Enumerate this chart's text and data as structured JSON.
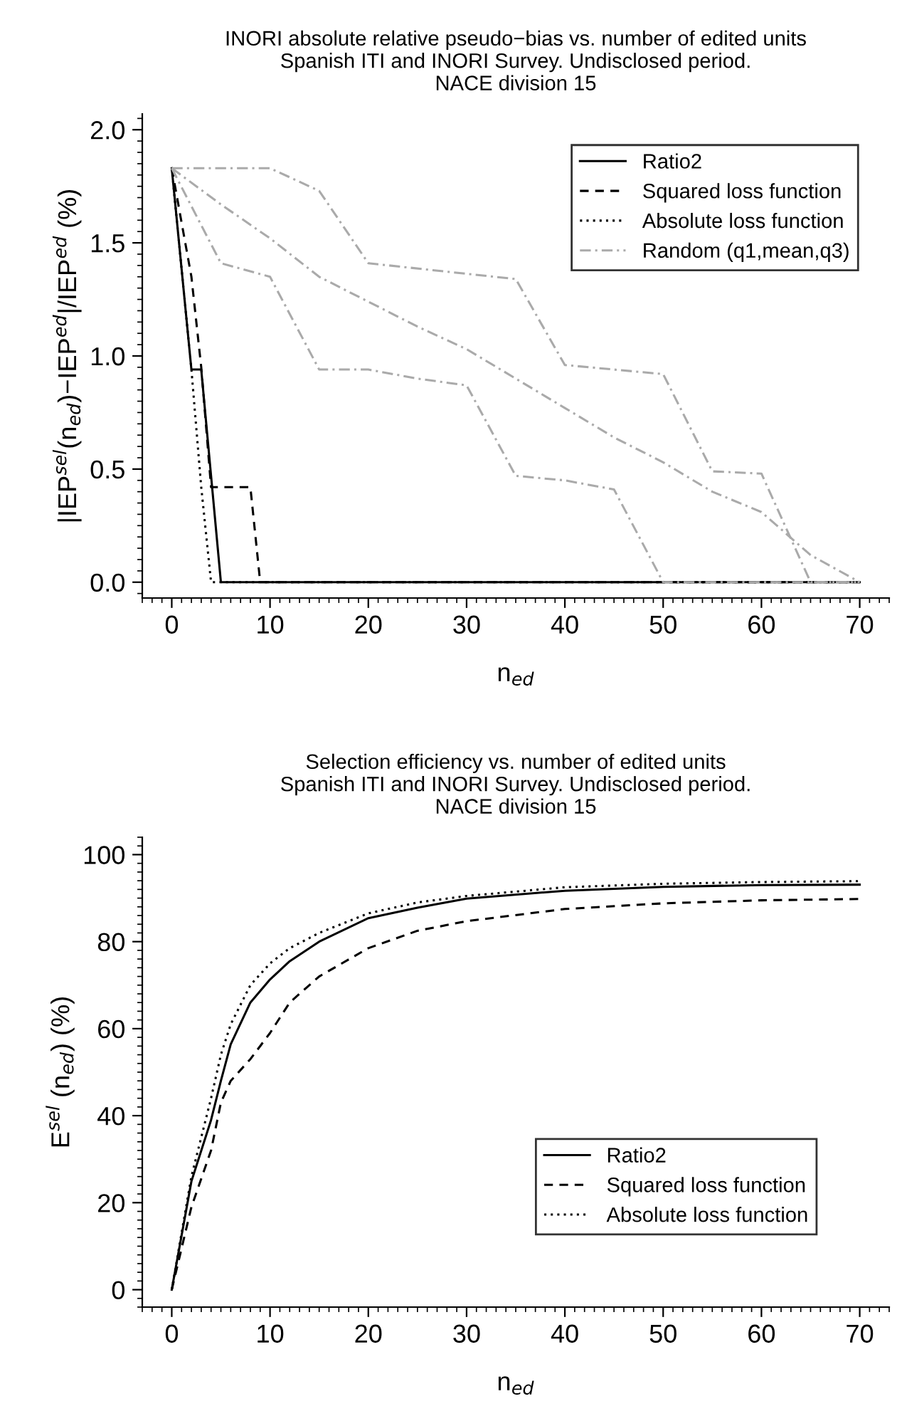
{
  "chart_data": [
    {
      "type": "line",
      "title": "INORI absolute relative pseudo−bias vs. number of edited units\nSpanish ITI and INORI Survey. Undisclosed period.\nNACE division 15",
      "xlabel": "n$_{ed}$",
      "ylabel": "|IEP$^{sel}$(n$_{ed}$)−IEP$^{ed}$|/IEP$^{ed}$ (%)",
      "xlim": [
        -3,
        73
      ],
      "ylim": [
        -0.07,
        2.07
      ],
      "xticks": [
        0,
        10,
        20,
        30,
        40,
        50,
        60,
        70
      ],
      "yticks": [
        {
          "value": 0,
          "label": "0.0"
        },
        {
          "value": 0.5,
          "label": "0.5"
        },
        {
          "value": 1,
          "label": "1.0"
        },
        {
          "value": 1.5,
          "label": "1.5"
        },
        {
          "value": 2,
          "label": "2.0"
        }
      ],
      "grid": false,
      "legend": "top right",
      "marker": "none",
      "series": [
        {
          "name": "Ratio2",
          "color": "#000000",
          "line_style": "solid",
          "x": [
            0,
            2,
            3,
            5,
            70
          ],
          "values": [
            1.83,
            0.94,
            0.94,
            0,
            0
          ]
        },
        {
          "name": "Squared loss function",
          "color": "#000000",
          "line_style": "dashed",
          "x": [
            0,
            2,
            3,
            4,
            8,
            9,
            70
          ],
          "values": [
            1.83,
            1.35,
            0.95,
            0.42,
            0.42,
            0,
            0
          ]
        },
        {
          "name": "Absolute loss function",
          "color": "#000000",
          "line_style": "dotted",
          "x": [
            0,
            2,
            3,
            4,
            70
          ],
          "values": [
            1.83,
            0.94,
            0.42,
            0,
            0
          ]
        },
        {
          "name": "Random (q1,mean,q3)",
          "color": "#aaaaaa",
          "line_style": "dashdot",
          "x": [
            0,
            10,
            15,
            20,
            35,
            40,
            50,
            55,
            60,
            65,
            70
          ],
          "values": [
            1.83,
            1.83,
            1.73,
            1.41,
            1.34,
            0.96,
            0.92,
            0.49,
            0.48,
            0,
            0
          ]
        },
        {
          "color": "#aaaaaa",
          "line_style": "dashdot",
          "x": [
            0,
            5,
            10,
            15,
            20,
            25,
            30,
            35,
            40,
            45,
            50,
            55,
            60,
            65,
            70
          ],
          "values": [
            1.83,
            1.67,
            1.52,
            1.35,
            1.24,
            1.13,
            1.03,
            0.9,
            0.77,
            0.64,
            0.53,
            0.4,
            0.31,
            0.12,
            0
          ]
        },
        {
          "color": "#aaaaaa",
          "line_style": "dashdot",
          "x": [
            0,
            5,
            10,
            15,
            20,
            25,
            30,
            35,
            40,
            45,
            50,
            70
          ],
          "values": [
            1.83,
            1.41,
            1.35,
            0.94,
            0.94,
            0.9,
            0.87,
            0.47,
            0.45,
            0.41,
            0,
            0
          ]
        }
      ]
    },
    {
      "type": "line",
      "title": "Selection efficiency vs. number of edited units\nSpanish ITI and INORI Survey. Undisclosed period.\nNACE division 15",
      "xlabel": "n$_{ed}$",
      "ylabel": "E$^{sel}$ (n$_{ed}$) (%)",
      "xlim": [
        -3,
        73
      ],
      "ylim": [
        -4,
        104
      ],
      "xticks": [
        0,
        10,
        20,
        30,
        40,
        50,
        60,
        70
      ],
      "yticks": [
        0,
        20,
        40,
        60,
        80,
        100
      ],
      "grid": false,
      "legend": "bottom right",
      "marker": "none",
      "series": [
        {
          "name": "Ratio2",
          "color": "#000000",
          "line_style": "solid",
          "x": [
            0,
            2,
            4,
            5,
            6,
            8,
            10,
            12,
            15,
            20,
            25,
            30,
            40,
            50,
            60,
            70
          ],
          "values": [
            0,
            24.9,
            39,
            48,
            56.4,
            66,
            71.3,
            75.5,
            80,
            85.4,
            87.8,
            89.9,
            91.7,
            92.6,
            93,
            93.1
          ]
        },
        {
          "name": "Squared loss function",
          "color": "#000000",
          "line_style": "dashed",
          "x": [
            0,
            2,
            4,
            5,
            6,
            8,
            10,
            12,
            15,
            20,
            25,
            30,
            40,
            50,
            60,
            70
          ],
          "values": [
            0,
            19,
            32,
            43,
            48,
            53,
            59,
            66,
            72,
            78.5,
            82.5,
            84.7,
            87.5,
            88.8,
            89.5,
            89.8
          ]
        },
        {
          "name": "Absolute loss function",
          "color": "#000000",
          "line_style": "dotted",
          "x": [
            0,
            1,
            2,
            4,
            5,
            6,
            8,
            10,
            12,
            15,
            20,
            25,
            30,
            40,
            50,
            60,
            70
          ],
          "values": [
            0,
            13,
            26,
            44,
            54,
            61,
            70,
            75,
            78.5,
            82,
            86.5,
            89,
            90.5,
            92.5,
            93.3,
            93.7,
            93.9
          ]
        }
      ]
    }
  ]
}
